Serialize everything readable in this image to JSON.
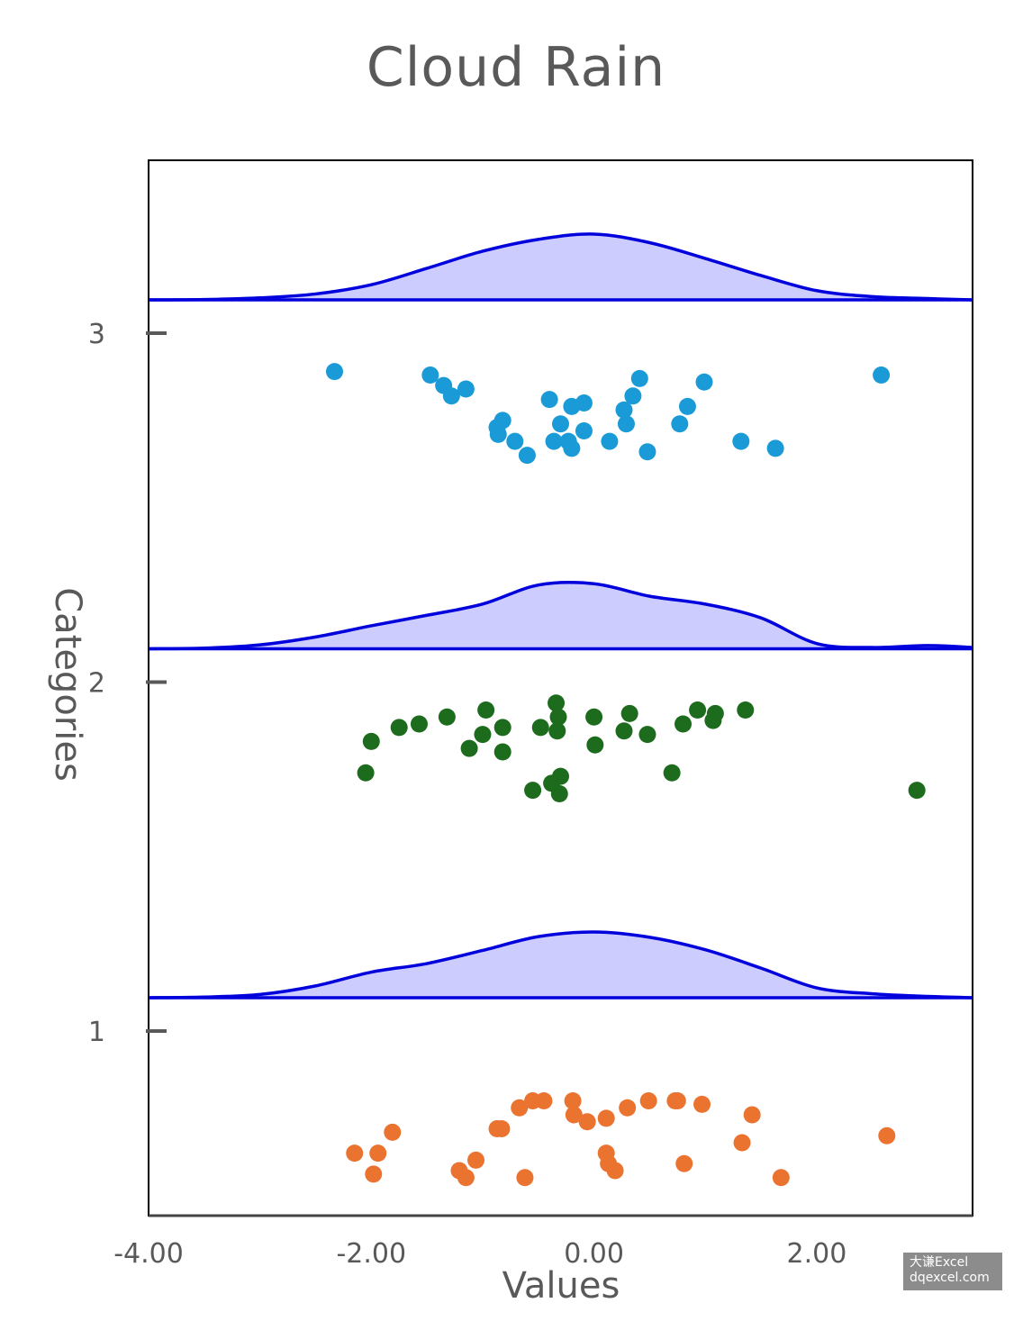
{
  "chart_data": {
    "type": "raincloud",
    "title": "Cloud Rain",
    "xlabel": "Values",
    "ylabel": "Categories",
    "xlim": [
      -4,
      3.4
    ],
    "x_ticks": [
      "-4.00",
      "-2.00",
      "0.00",
      "2.00"
    ],
    "x_tick_values": [
      -4,
      -2,
      0,
      2
    ],
    "y_ticks": [
      "1",
      "2",
      "3"
    ],
    "y_tick_values": [
      1,
      2,
      3
    ],
    "ylim": [
      0.45,
      3.5
    ],
    "density_fill": "#ccccff",
    "density_line": "#0000dd",
    "density": {
      "x": [
        -4.0,
        -3.5,
        -3.0,
        -2.5,
        -2.0,
        -1.5,
        -1.0,
        -0.5,
        0.0,
        0.5,
        1.0,
        1.5,
        2.0,
        2.5,
        3.0,
        3.4
      ],
      "cat3": [
        0,
        0.005,
        0.03,
        0.09,
        0.23,
        0.48,
        0.74,
        0.92,
        1.0,
        0.87,
        0.63,
        0.37,
        0.14,
        0.05,
        0.02,
        0.0
      ],
      "cat2": [
        0,
        0.01,
        0.06,
        0.18,
        0.35,
        0.51,
        0.68,
        0.97,
        0.99,
        0.8,
        0.68,
        0.47,
        0.08,
        0.02,
        0.05,
        0.02
      ],
      "cat1": [
        0,
        0.01,
        0.05,
        0.18,
        0.39,
        0.52,
        0.72,
        0.93,
        1.0,
        0.92,
        0.73,
        0.45,
        0.15,
        0.06,
        0.02,
        0.0
      ]
    },
    "series": [
      {
        "category": "3",
        "color": "#1a9ad6",
        "points": [
          [
            -2.33,
            2.89
          ],
          [
            -1.47,
            2.88
          ],
          [
            -1.35,
            2.85
          ],
          [
            -1.28,
            2.82
          ],
          [
            -1.15,
            2.84
          ],
          [
            -0.4,
            2.81
          ],
          [
            -0.87,
            2.73
          ],
          [
            -0.86,
            2.71
          ],
          [
            -0.82,
            2.75
          ],
          [
            -0.71,
            2.69
          ],
          [
            -0.6,
            2.65
          ],
          [
            -0.36,
            2.69
          ],
          [
            -0.3,
            2.74
          ],
          [
            -0.23,
            2.69
          ],
          [
            -0.2,
            2.67
          ],
          [
            -0.2,
            2.79
          ],
          [
            -0.09,
            2.8
          ],
          [
            -0.09,
            2.72
          ],
          [
            0.14,
            2.69
          ],
          [
            0.27,
            2.78
          ],
          [
            0.29,
            2.74
          ],
          [
            0.35,
            2.82
          ],
          [
            0.41,
            2.87
          ],
          [
            0.48,
            2.66
          ],
          [
            0.77,
            2.74
          ],
          [
            0.84,
            2.79
          ],
          [
            0.99,
            2.86
          ],
          [
            1.32,
            2.69
          ],
          [
            1.63,
            2.67
          ],
          [
            2.58,
            2.88
          ]
        ]
      },
      {
        "category": "2",
        "color": "#1d6b1d",
        "points": [
          [
            -2.05,
            1.74
          ],
          [
            -2.0,
            1.83
          ],
          [
            -1.75,
            1.87
          ],
          [
            -1.57,
            1.88
          ],
          [
            -1.32,
            1.9
          ],
          [
            -1.12,
            1.81
          ],
          [
            -1.0,
            1.85
          ],
          [
            -0.97,
            1.92
          ],
          [
            -0.82,
            1.87
          ],
          [
            -0.82,
            1.8
          ],
          [
            -0.55,
            1.69
          ],
          [
            -0.48,
            1.87
          ],
          [
            -0.38,
            1.71
          ],
          [
            -0.34,
            1.94
          ],
          [
            -0.33,
            1.86
          ],
          [
            -0.32,
            1.9
          ],
          [
            -0.31,
            1.68
          ],
          [
            -0.3,
            1.73
          ],
          [
            0.0,
            1.9
          ],
          [
            0.01,
            1.82
          ],
          [
            0.27,
            1.86
          ],
          [
            0.32,
            1.91
          ],
          [
            0.48,
            1.85
          ],
          [
            0.7,
            1.74
          ],
          [
            0.8,
            1.88
          ],
          [
            0.93,
            1.92
          ],
          [
            1.07,
            1.89
          ],
          [
            1.09,
            1.91
          ],
          [
            1.36,
            1.92
          ],
          [
            2.9,
            1.69
          ]
        ]
      },
      {
        "category": "1",
        "color": "#eb7330",
        "points": [
          [
            -2.15,
            0.65
          ],
          [
            -1.98,
            0.59
          ],
          [
            -1.94,
            0.65
          ],
          [
            -1.81,
            0.71
          ],
          [
            -1.21,
            0.6
          ],
          [
            -1.15,
            0.58
          ],
          [
            -1.06,
            0.63
          ],
          [
            -0.87,
            0.72
          ],
          [
            -0.83,
            0.72
          ],
          [
            -0.67,
            0.78
          ],
          [
            -0.55,
            0.8
          ],
          [
            -0.45,
            0.8
          ],
          [
            -0.62,
            0.58
          ],
          [
            -0.19,
            0.8
          ],
          [
            -0.18,
            0.76
          ],
          [
            -0.06,
            0.74
          ],
          [
            0.11,
            0.75
          ],
          [
            0.11,
            0.65
          ],
          [
            0.13,
            0.62
          ],
          [
            0.19,
            0.6
          ],
          [
            0.3,
            0.78
          ],
          [
            0.49,
            0.8
          ],
          [
            0.73,
            0.8
          ],
          [
            0.75,
            0.8
          ],
          [
            0.97,
            0.79
          ],
          [
            0.81,
            0.62
          ],
          [
            1.33,
            0.68
          ],
          [
            1.42,
            0.76
          ],
          [
            1.68,
            0.58
          ],
          [
            2.63,
            0.7
          ]
        ]
      }
    ]
  },
  "watermark": {
    "line1": "大谦Excel",
    "line2": "dqexcel.com"
  }
}
